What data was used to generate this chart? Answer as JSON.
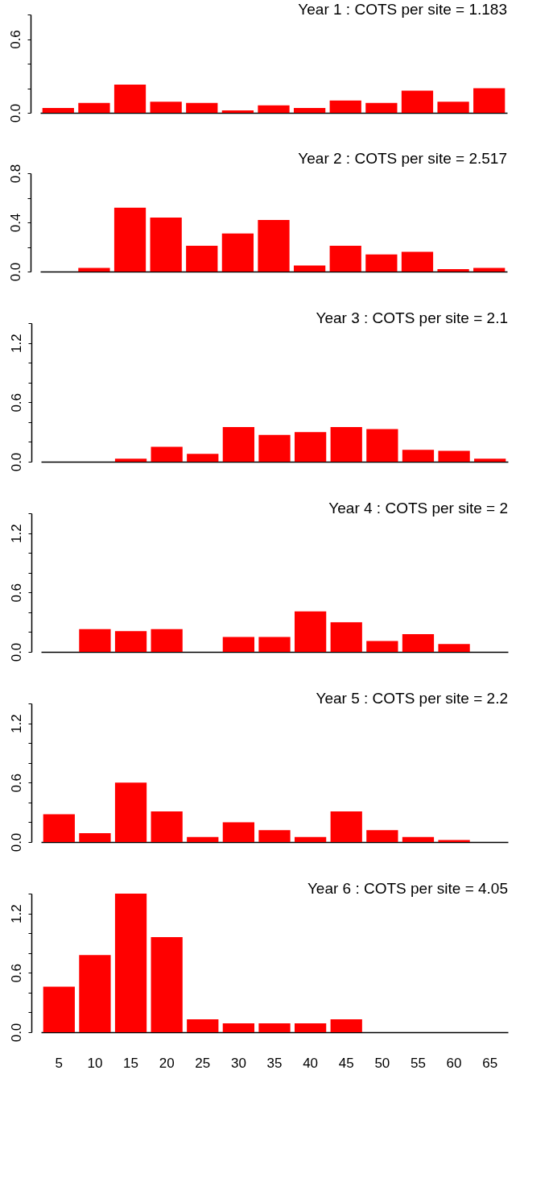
{
  "chart_data": [
    {
      "type": "bar",
      "title": "Year 1 : COTS per site = 1.183",
      "categories": [
        "5",
        "10",
        "15",
        "20",
        "25",
        "30",
        "35",
        "40",
        "45",
        "50",
        "55",
        "60",
        "65"
      ],
      "values": [
        0.04,
        0.08,
        0.23,
        0.09,
        0.08,
        0.02,
        0.06,
        0.04,
        0.1,
        0.08,
        0.18,
        0.09,
        0.2
      ],
      "color": "#ff0000",
      "ylim": [
        0,
        0.8
      ],
      "yticks": [
        {
          "value": 0,
          "label": "0.0"
        },
        {
          "value": 0.2,
          "label": null
        },
        {
          "value": 0.4,
          "label": null
        },
        {
          "value": 0.6,
          "label": "0.6"
        },
        {
          "value": 0.8,
          "label": null
        }
      ],
      "tick_labels": "y"
    },
    {
      "type": "bar",
      "title": "Year 2 : COTS per site = 2.517",
      "categories": [
        "5",
        "10",
        "15",
        "20",
        "25",
        "30",
        "35",
        "40",
        "45",
        "50",
        "55",
        "60",
        "65"
      ],
      "values": [
        0,
        0.03,
        0.52,
        0.44,
        0.21,
        0.31,
        0.42,
        0.05,
        0.21,
        0.14,
        0.16,
        0.02,
        0.03
      ],
      "color": "#ff0000",
      "ylim": [
        0,
        0.8
      ],
      "yticks": [
        {
          "value": 0,
          "label": "0.0"
        },
        {
          "value": 0.2,
          "label": null
        },
        {
          "value": 0.4,
          "label": "0.4"
        },
        {
          "value": 0.6,
          "label": null
        },
        {
          "value": 0.8,
          "label": "0.8"
        }
      ],
      "tick_labels": "y"
    },
    {
      "type": "bar",
      "title": "Year 3 : COTS per site = 2.1",
      "categories": [
        "5",
        "10",
        "15",
        "20",
        "25",
        "30",
        "35",
        "40",
        "45",
        "50",
        "55",
        "60",
        "65"
      ],
      "values": [
        0,
        0,
        0.03,
        0.15,
        0.08,
        0.35,
        0.27,
        0.3,
        0.35,
        0.33,
        0.12,
        0.11,
        0.03
      ],
      "color": "#ff0000",
      "ylim": [
        0,
        1.4
      ],
      "yticks": [
        {
          "value": 0,
          "label": "0.0"
        },
        {
          "value": 0.2,
          "label": null
        },
        {
          "value": 0.4,
          "label": null
        },
        {
          "value": 0.6,
          "label": "0.6"
        },
        {
          "value": 0.8,
          "label": null
        },
        {
          "value": 1.0,
          "label": null
        },
        {
          "value": 1.2,
          "label": "1.2"
        },
        {
          "value": 1.4,
          "label": null
        }
      ],
      "tick_labels": "y"
    },
    {
      "type": "bar",
      "title": "Year 4 : COTS per site = 2",
      "categories": [
        "5",
        "10",
        "15",
        "20",
        "25",
        "30",
        "35",
        "40",
        "45",
        "50",
        "55",
        "60",
        "65"
      ],
      "values": [
        0,
        0.23,
        0.21,
        0.23,
        0,
        0.15,
        0.15,
        0.41,
        0.3,
        0.11,
        0.18,
        0.08,
        0
      ],
      "color": "#ff0000",
      "ylim": [
        0,
        1.4
      ],
      "yticks": [
        {
          "value": 0,
          "label": "0.0"
        },
        {
          "value": 0.2,
          "label": null
        },
        {
          "value": 0.4,
          "label": null
        },
        {
          "value": 0.6,
          "label": "0.6"
        },
        {
          "value": 0.8,
          "label": null
        },
        {
          "value": 1.0,
          "label": null
        },
        {
          "value": 1.2,
          "label": "1.2"
        },
        {
          "value": 1.4,
          "label": null
        }
      ],
      "tick_labels": "y"
    },
    {
      "type": "bar",
      "title": "Year 5 : COTS per site = 2.2",
      "categories": [
        "5",
        "10",
        "15",
        "20",
        "25",
        "30",
        "35",
        "40",
        "45",
        "50",
        "55",
        "60",
        "65"
      ],
      "values": [
        0.28,
        0.09,
        0.6,
        0.31,
        0.05,
        0.2,
        0.12,
        0.05,
        0.31,
        0.12,
        0.05,
        0.02,
        0
      ],
      "color": "#ff0000",
      "ylim": [
        0,
        1.4
      ],
      "yticks": [
        {
          "value": 0,
          "label": "0.0"
        },
        {
          "value": 0.2,
          "label": null
        },
        {
          "value": 0.4,
          "label": null
        },
        {
          "value": 0.6,
          "label": "0.6"
        },
        {
          "value": 0.8,
          "label": null
        },
        {
          "value": 1.0,
          "label": null
        },
        {
          "value": 1.2,
          "label": "1.2"
        },
        {
          "value": 1.4,
          "label": null
        }
      ],
      "tick_labels": "y"
    },
    {
      "type": "bar",
      "title": "Year 6 : COTS per site = 4.05",
      "categories": [
        "5",
        "10",
        "15",
        "20",
        "25",
        "30",
        "35",
        "40",
        "45",
        "50",
        "55",
        "60",
        "65"
      ],
      "values": [
        0.46,
        0.78,
        1.4,
        0.96,
        0.13,
        0.09,
        0.09,
        0.09,
        0.13,
        0,
        0,
        0,
        0
      ],
      "color": "#ff0000",
      "ylim": [
        0,
        1.4
      ],
      "yticks": [
        {
          "value": 0,
          "label": "0.0"
        },
        {
          "value": 0.2,
          "label": null
        },
        {
          "value": 0.4,
          "label": null
        },
        {
          "value": 0.6,
          "label": "0.6"
        },
        {
          "value": 0.8,
          "label": null
        },
        {
          "value": 1.0,
          "label": null
        },
        {
          "value": 1.2,
          "label": "1.2"
        },
        {
          "value": 1.4,
          "label": null
        }
      ]
    }
  ]
}
